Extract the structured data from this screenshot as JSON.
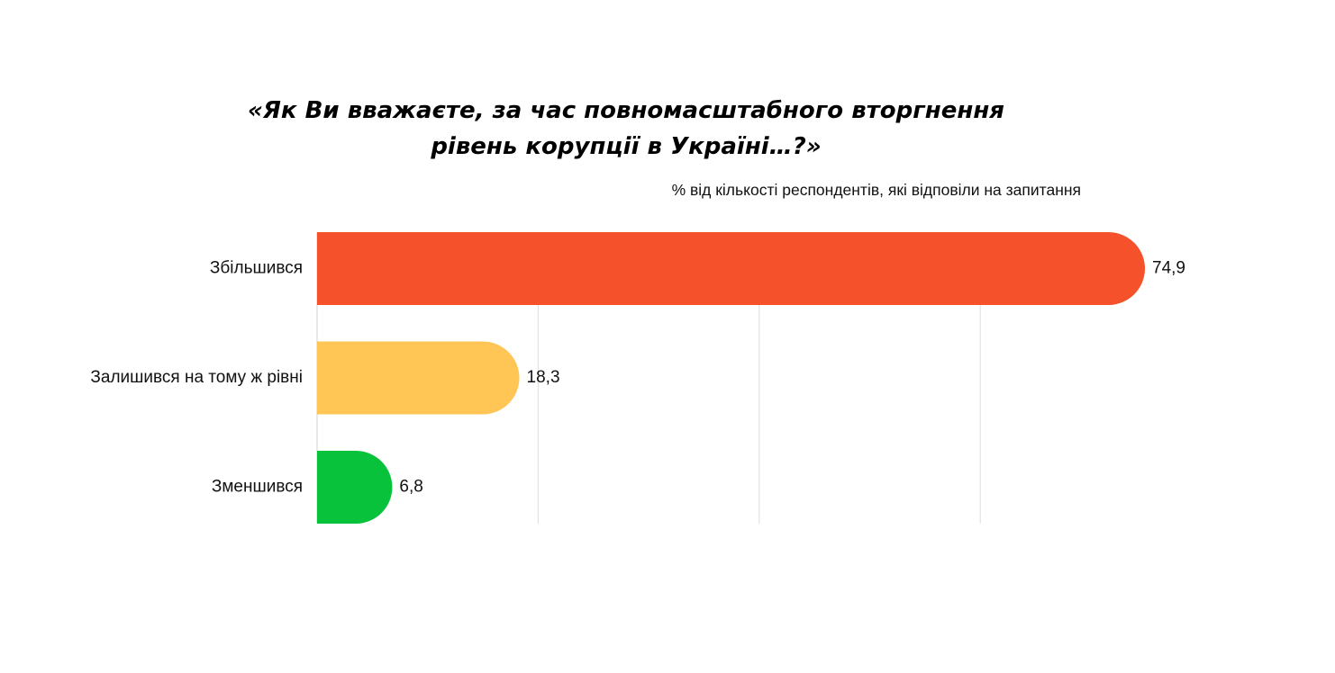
{
  "chart_data": {
    "type": "bar",
    "orientation": "horizontal",
    "title": "«Як Ви вважаєте, за час повномасштабного вторгнення\nрівень корупції в Україні…?»",
    "subtitle": "% від кількості респондентів, які відповіли на запитання",
    "categories": [
      "Збільшився",
      "Залишився на тому ж рівні",
      "Зменшився"
    ],
    "values": [
      74.9,
      18.3,
      6.8
    ],
    "value_labels": [
      "74,9",
      "18,3",
      "6,8"
    ],
    "colors": [
      "#F5512A",
      "#FFC655",
      "#08C23C"
    ],
    "xlim": [
      0,
      80
    ],
    "grid": true,
    "grid_values": [
      20,
      40,
      60
    ],
    "legend": "none"
  }
}
